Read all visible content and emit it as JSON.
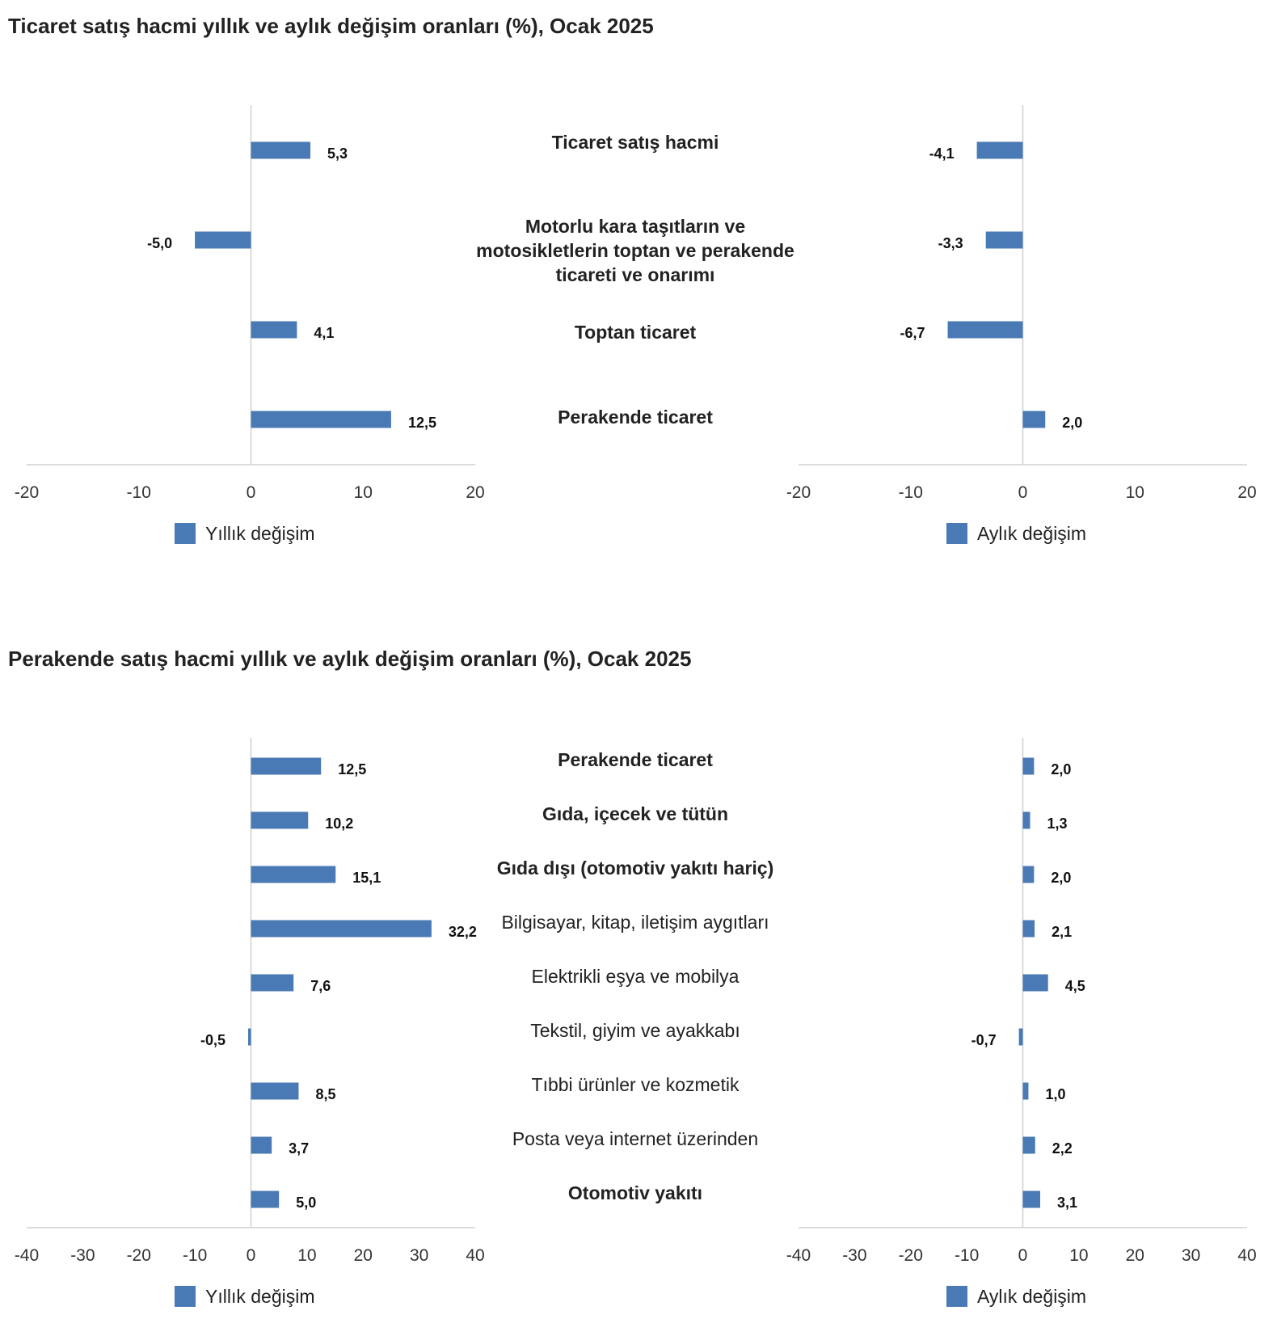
{
  "colors": {
    "bar": "#4a7ab5",
    "axis_line": "#d0d0d0",
    "text": "#222222"
  },
  "chart_data": [
    {
      "type": "bar",
      "orientation": "horizontal",
      "title": "Ticaret satış hacmi yıllık ve aylık değişim oranları (%), Ocak 2025",
      "categories": [
        "Ticaret satış hacmi",
        "Motorlu kara taşıtların ve motosikletlerin toptan ve perakende ticareti ve onarımı",
        "Toptan ticaret",
        "Perakende ticaret"
      ],
      "category_bold": [
        true,
        true,
        true,
        true
      ],
      "series": [
        {
          "name": "Yıllık değişim",
          "values": [
            5.3,
            -5.0,
            4.1,
            12.5
          ],
          "labels": [
            "5,3",
            "-5,0",
            "4,1",
            "12,5"
          ]
        },
        {
          "name": "Aylık değişim",
          "values": [
            -4.1,
            -3.3,
            -6.7,
            2.0
          ],
          "labels": [
            "-4,1",
            "-3,3",
            "-6,7",
            "2,0"
          ]
        }
      ],
      "xlim": [
        -20,
        20
      ],
      "ticks": [
        -20,
        -10,
        0,
        10,
        20
      ],
      "tick_labels": [
        "-20",
        "-10",
        "0",
        "10",
        "20"
      ],
      "legend_position": "bottom"
    },
    {
      "type": "bar",
      "orientation": "horizontal",
      "title": "Perakende satış hacmi yıllık ve aylık değişim oranları (%), Ocak 2025",
      "categories": [
        "Perakende ticaret",
        "Gıda, içecek ve tütün",
        "Gıda dışı (otomotiv yakıtı hariç)",
        "Bilgisayar, kitap, iletişim aygıtları",
        "Elektrikli eşya ve mobilya",
        "Tekstil, giyim ve ayakkabı",
        "Tıbbi ürünler ve kozmetik",
        "Posta veya internet üzerinden",
        "Otomotiv yakıtı"
      ],
      "category_bold": [
        true,
        true,
        true,
        false,
        false,
        false,
        false,
        false,
        true
      ],
      "series": [
        {
          "name": "Yıllık değişim",
          "values": [
            12.5,
            10.2,
            15.1,
            32.2,
            7.6,
            -0.5,
            8.5,
            3.7,
            5.0
          ],
          "labels": [
            "12,5",
            "10,2",
            "15,1",
            "32,2",
            "7,6",
            "-0,5",
            "8,5",
            "3,7",
            "5,0"
          ]
        },
        {
          "name": "Aylık değişim",
          "values": [
            2.0,
            1.3,
            2.0,
            2.1,
            4.5,
            -0.7,
            1.0,
            2.2,
            3.1
          ],
          "labels": [
            "2,0",
            "1,3",
            "2,0",
            "2,1",
            "4,5",
            "-0,7",
            "1,0",
            "2,2",
            "3,1"
          ]
        }
      ],
      "xlim": [
        -40,
        40
      ],
      "ticks": [
        -40,
        -30,
        -20,
        -10,
        0,
        10,
        20,
        30,
        40
      ],
      "tick_labels": [
        "-40",
        "-30",
        "-20",
        "-10",
        "0",
        "10",
        "20",
        "30",
        "40"
      ],
      "legend_position": "bottom"
    }
  ]
}
